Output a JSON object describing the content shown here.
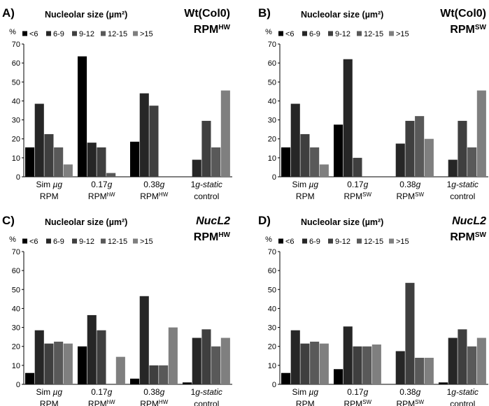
{
  "colors": {
    "series": [
      "#000000",
      "#262626",
      "#3f3f3f",
      "#595959",
      "#7f7f7f"
    ],
    "axis": "#000000",
    "text": "#000000"
  },
  "chart_data": [
    {
      "type": "bar",
      "panel_label": "A)",
      "title": "Nucleolar size (µm²)",
      "tag_top": "Wt(Col0)",
      "tag_main": "RPM",
      "tag_sup": "HW",
      "tag_top_italic": false,
      "ylabel": "%",
      "ylim": [
        0,
        70
      ],
      "yticks": [
        "0",
        "10",
        "20",
        "30",
        "40",
        "50",
        "60",
        "70"
      ],
      "categories": [
        {
          "line1": [
            {
              "t": "Sim "
            },
            {
              "t": "µg",
              "i": true
            }
          ],
          "line2": [
            {
              "t": "RPM"
            }
          ]
        },
        {
          "line1": [
            {
              "t": "0.17"
            },
            {
              "t": "g",
              "i": true
            }
          ],
          "line2": [
            {
              "t": "RPM"
            },
            {
              "t": "hW",
              "sup": true
            }
          ]
        },
        {
          "line1": [
            {
              "t": "0.38"
            },
            {
              "t": "g",
              "i": true
            }
          ],
          "line2": [
            {
              "t": "RPM"
            },
            {
              "t": "HW",
              "sup": true
            }
          ]
        },
        {
          "line1": [
            {
              "t": "1"
            },
            {
              "t": "g-static",
              "i": true
            }
          ],
          "line2": [
            {
              "t": "control"
            }
          ]
        }
      ],
      "series": [
        {
          "name": "<6",
          "values": [
            15.5,
            63.5,
            18.5,
            0
          ]
        },
        {
          "name": "6-9",
          "values": [
            38.5,
            18.0,
            44.0,
            9.0
          ]
        },
        {
          "name": "9-12",
          "values": [
            22.5,
            15.5,
            37.5,
            29.5
          ]
        },
        {
          "name": "12-15",
          "values": [
            15.5,
            2.0,
            0,
            15.5
          ]
        },
        {
          "name": ">15",
          "values": [
            6.5,
            0,
            0,
            45.5
          ]
        }
      ]
    },
    {
      "type": "bar",
      "panel_label": "B)",
      "title": "Nucleolar size (µm²)",
      "tag_top": "Wt(Col0)",
      "tag_main": "RPM",
      "tag_sup": "SW",
      "tag_top_italic": false,
      "ylabel": "%",
      "ylim": [
        0,
        70
      ],
      "yticks": [
        "0",
        "10",
        "20",
        "30",
        "40",
        "50",
        "60",
        "70"
      ],
      "categories": [
        {
          "line1": [
            {
              "t": "Sim "
            },
            {
              "t": "µg",
              "i": true
            }
          ],
          "line2": [
            {
              "t": "RPM"
            }
          ]
        },
        {
          "line1": [
            {
              "t": "0.17"
            },
            {
              "t": "g",
              "i": true
            }
          ],
          "line2": [
            {
              "t": "RPM"
            },
            {
              "t": "SW",
              "sup": true
            }
          ]
        },
        {
          "line1": [
            {
              "t": "0.38"
            },
            {
              "t": "g",
              "i": true
            }
          ],
          "line2": [
            {
              "t": "RPM"
            },
            {
              "t": "SW",
              "sup": true
            }
          ]
        },
        {
          "line1": [
            {
              "t": "1"
            },
            {
              "t": "g-static",
              "i": true
            }
          ],
          "line2": [
            {
              "t": "control"
            }
          ]
        }
      ],
      "series": [
        {
          "name": "<6",
          "values": [
            15.5,
            27.5,
            0,
            0
          ]
        },
        {
          "name": "6-9",
          "values": [
            38.5,
            62.0,
            17.5,
            9.0
          ]
        },
        {
          "name": "9-12",
          "values": [
            22.5,
            10.0,
            29.5,
            29.5
          ]
        },
        {
          "name": "12-15",
          "values": [
            15.5,
            0,
            32.0,
            15.5
          ]
        },
        {
          "name": ">15",
          "values": [
            6.5,
            0,
            20.0,
            45.5
          ]
        }
      ]
    },
    {
      "type": "bar",
      "panel_label": "C)",
      "title": "Nucleolar size (µm²)",
      "tag_top": "NucL2",
      "tag_main": "RPM",
      "tag_sup": "HW",
      "tag_top_italic": true,
      "ylabel": "%",
      "ylim": [
        0,
        70
      ],
      "yticks": [
        "0",
        "10",
        "20",
        "30",
        "40",
        "50",
        "60",
        "70"
      ],
      "categories": [
        {
          "line1": [
            {
              "t": "Sim "
            },
            {
              "t": "µg",
              "i": true
            }
          ],
          "line2": [
            {
              "t": "RPM"
            }
          ]
        },
        {
          "line1": [
            {
              "t": "0.17"
            },
            {
              "t": "g",
              "i": true
            }
          ],
          "line2": [
            {
              "t": "RPM"
            },
            {
              "t": "hW",
              "sup": true
            }
          ]
        },
        {
          "line1": [
            {
              "t": "0.38"
            },
            {
              "t": "g",
              "i": true
            }
          ],
          "line2": [
            {
              "t": "RPM"
            },
            {
              "t": "HW",
              "sup": true
            }
          ]
        },
        {
          "line1": [
            {
              "t": "1"
            },
            {
              "t": "g-static",
              "i": true
            }
          ],
          "line2": [
            {
              "t": "control"
            }
          ]
        }
      ],
      "series": [
        {
          "name": "<6",
          "values": [
            6.0,
            20.0,
            3.0,
            1.0
          ]
        },
        {
          "name": "6-9",
          "values": [
            28.5,
            36.5,
            46.5,
            24.5
          ]
        },
        {
          "name": "9-12",
          "values": [
            21.5,
            28.5,
            10.0,
            29.0
          ]
        },
        {
          "name": "12-15",
          "values": [
            22.5,
            0,
            10.0,
            20.0
          ]
        },
        {
          "name": ">15",
          "values": [
            21.5,
            14.5,
            30.0,
            24.5
          ]
        }
      ]
    },
    {
      "type": "bar",
      "panel_label": "D)",
      "title": "Nucleolar size (µm²)",
      "tag_top": "NucL2",
      "tag_main": "RPM",
      "tag_sup": "SW",
      "tag_top_italic": true,
      "ylabel": "%",
      "ylim": [
        0,
        70
      ],
      "yticks": [
        "0",
        "10",
        "20",
        "30",
        "40",
        "50",
        "60",
        "70"
      ],
      "categories": [
        {
          "line1": [
            {
              "t": "Sim "
            },
            {
              "t": "µg",
              "i": true
            }
          ],
          "line2": [
            {
              "t": "RPM"
            }
          ]
        },
        {
          "line1": [
            {
              "t": "0.17"
            },
            {
              "t": "g",
              "i": true
            }
          ],
          "line2": [
            {
              "t": "RPM"
            },
            {
              "t": "SW",
              "sup": true
            }
          ]
        },
        {
          "line1": [
            {
              "t": "0.38"
            },
            {
              "t": "g",
              "i": true
            }
          ],
          "line2": [
            {
              "t": "RPM"
            },
            {
              "t": "SW",
              "sup": true
            }
          ]
        },
        {
          "line1": [
            {
              "t": "1"
            },
            {
              "t": "g-static",
              "i": true
            }
          ],
          "line2": [
            {
              "t": "control"
            }
          ]
        }
      ],
      "series": [
        {
          "name": "<6",
          "values": [
            6.0,
            8.0,
            0,
            1.0
          ]
        },
        {
          "name": "6-9",
          "values": [
            28.5,
            30.5,
            17.5,
            24.5
          ]
        },
        {
          "name": "9-12",
          "values": [
            21.5,
            20.0,
            53.5,
            29.0
          ]
        },
        {
          "name": "12-15",
          "values": [
            22.5,
            20.0,
            14.0,
            20.0
          ]
        },
        {
          "name": ">15",
          "values": [
            21.5,
            21.0,
            14.0,
            24.5
          ]
        }
      ]
    }
  ]
}
